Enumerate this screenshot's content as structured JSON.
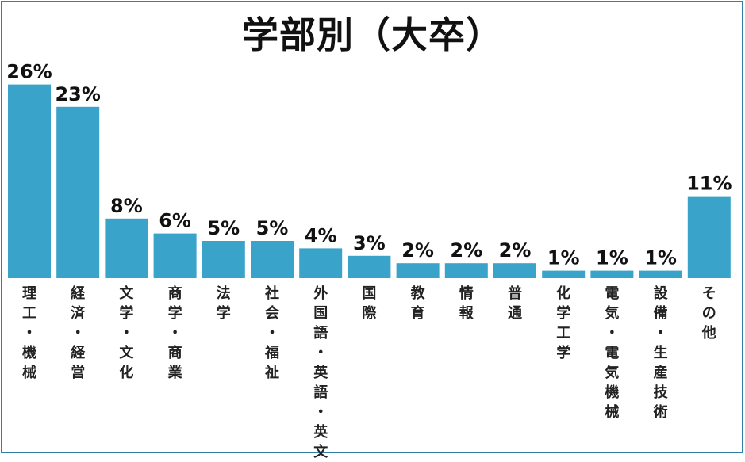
{
  "chart_data": {
    "type": "bar",
    "title": "学部別（大卒）",
    "categories": [
      "理工・機械",
      "経済・経営",
      "文学・文化",
      "商学・商業",
      "法学",
      "社会・福祉",
      "外国語・英語・英文",
      "国際",
      "教育",
      "情報",
      "普通",
      "化学工学",
      "電気・電気機械",
      "設備・生産技術",
      "その他"
    ],
    "values": [
      26,
      23,
      8,
      6,
      5,
      5,
      4,
      3,
      2,
      2,
      2,
      1,
      1,
      1,
      11
    ],
    "value_labels": [
      "26%",
      "23%",
      "8%",
      "6%",
      "5%",
      "5%",
      "4%",
      "3%",
      "2%",
      "2%",
      "2%",
      "1%",
      "1%",
      "1%",
      "11%"
    ],
    "unit": "%",
    "xlabel": "",
    "ylabel": "",
    "grid": false,
    "bar_color": "#3aa3c9"
  }
}
